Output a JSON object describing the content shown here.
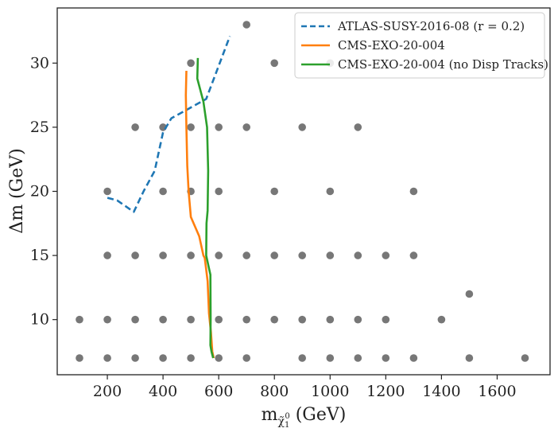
{
  "chart_data": {
    "type": "scatter",
    "title": "",
    "xlabel": "m_χ̃₁⁰ (GeV)",
    "xlabel_parts": {
      "prefix": "m",
      "subscript": "χ̃",
      "subsub": "1",
      "sup": "0",
      "suffix": " (GeV)"
    },
    "ylabel": "Δm (GeV)",
    "xlim": [
      20,
      1790
    ],
    "ylim": [
      5.7,
      34.3
    ],
    "xticks": [
      200,
      400,
      600,
      800,
      1000,
      1200,
      1400,
      1600
    ],
    "yticks": [
      10,
      15,
      20,
      25,
      30
    ],
    "grid": false,
    "legend_position": "top-right",
    "colors": {
      "points": "#777777",
      "atlas": "#1f77b4",
      "cms": "#ff7f0e",
      "cms_nodisp": "#2ca02c"
    },
    "points": [
      [
        100,
        7
      ],
      [
        200,
        7
      ],
      [
        300,
        7
      ],
      [
        400,
        7
      ],
      [
        500,
        7
      ],
      [
        600,
        7
      ],
      [
        700,
        7
      ],
      [
        900,
        7
      ],
      [
        1000,
        7
      ],
      [
        1100,
        7
      ],
      [
        1200,
        7
      ],
      [
        1300,
        7
      ],
      [
        1500,
        7
      ],
      [
        1700,
        7
      ],
      [
        100,
        10
      ],
      [
        200,
        10
      ],
      [
        300,
        10
      ],
      [
        400,
        10
      ],
      [
        500,
        10
      ],
      [
        600,
        10
      ],
      [
        700,
        10
      ],
      [
        800,
        10
      ],
      [
        900,
        10
      ],
      [
        1000,
        10
      ],
      [
        1100,
        10
      ],
      [
        1200,
        10
      ],
      [
        1400,
        10
      ],
      [
        1500,
        12
      ],
      [
        200,
        15
      ],
      [
        300,
        15
      ],
      [
        400,
        15
      ],
      [
        500,
        15
      ],
      [
        600,
        15
      ],
      [
        700,
        15
      ],
      [
        800,
        15
      ],
      [
        900,
        15
      ],
      [
        1000,
        15
      ],
      [
        1100,
        15
      ],
      [
        1200,
        15
      ],
      [
        1300,
        15
      ],
      [
        200,
        20
      ],
      [
        400,
        20
      ],
      [
        500,
        20
      ],
      [
        600,
        20
      ],
      [
        800,
        20
      ],
      [
        1000,
        20
      ],
      [
        1300,
        20
      ],
      [
        300,
        25
      ],
      [
        400,
        25
      ],
      [
        500,
        25
      ],
      [
        600,
        25
      ],
      [
        700,
        25
      ],
      [
        900,
        25
      ],
      [
        1100,
        25
      ],
      [
        500,
        30
      ],
      [
        800,
        30
      ],
      [
        1000,
        30
      ],
      [
        700,
        33
      ]
    ],
    "series": [
      {
        "name": "ATLAS-SUSY-2016-08 (r = 0.2)",
        "style": "dashed",
        "x": [
          200,
          235,
          295,
          330,
          370,
          400,
          430,
          480,
          555,
          640
        ],
        "y": [
          19.5,
          19.3,
          18.4,
          20.0,
          21.6,
          24.6,
          25.7,
          26.3,
          27.2,
          32.1
        ]
      },
      {
        "name": "CMS-EXO-20-004",
        "style": "solid",
        "x": [
          484,
          482,
          484,
          487,
          492,
          500,
          530,
          545,
          550,
          560,
          565,
          572,
          577,
          582
        ],
        "y": [
          29.4,
          27.5,
          25.0,
          22.0,
          20.0,
          18.0,
          16.5,
          15.0,
          14.8,
          13.0,
          10.5,
          9.0,
          7.5,
          7.0
        ]
      },
      {
        "name": "CMS-EXO-20-004 (no Disp Tracks)",
        "style": "solid",
        "x": [
          525,
          523,
          545,
          558,
          562,
          560,
          556,
          555,
          565,
          570,
          571,
          570,
          574,
          580
        ],
        "y": [
          30.4,
          28.8,
          27.0,
          25.0,
          21.6,
          18.5,
          17.5,
          15.0,
          14.0,
          13.5,
          10.0,
          8.0,
          7.5,
          7.0
        ]
      }
    ]
  }
}
